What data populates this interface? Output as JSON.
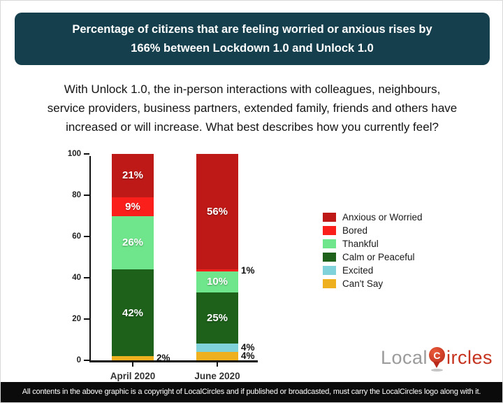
{
  "header": {
    "title_line1": "Percentage of citizens that are feeling worried or anxious rises by",
    "title_line2": "166% between Lockdown 1.0 and Unlock 1.0",
    "bg_color": "#153f4d"
  },
  "question": {
    "lines": [
      "With Unlock 1.0, the in-person interactions with colleagues, neighbours,",
      "service providers, business partners, extended family, friends and others have",
      "increased or will increase. What best describes how you currently feel?"
    ]
  },
  "chart_data": {
    "type": "bar",
    "subtype": "stacked",
    "title": "",
    "xlabel": "",
    "ylabel": "",
    "categories": [
      "April 2020",
      "June 2020"
    ],
    "series": [
      {
        "name": "Anxious or Worried",
        "color": "#be1917",
        "values": [
          21,
          56
        ]
      },
      {
        "name": "Bored",
        "color": "#fb1f1c",
        "values": [
          9,
          1
        ]
      },
      {
        "name": "Thankful",
        "color": "#70e68c",
        "values": [
          26,
          10
        ]
      },
      {
        "name": "Calm or Peaceful",
        "color": "#1e611b",
        "values": [
          42,
          25
        ]
      },
      {
        "name": "Excited",
        "color": "#7fd2d9",
        "values": [
          0,
          4
        ]
      },
      {
        "name": "Can't Say",
        "color": "#eeb01f",
        "values": [
          2,
          4
        ]
      }
    ],
    "ylim": [
      0,
      100
    ],
    "yticks": [
      0,
      20,
      40,
      60,
      80,
      100
    ],
    "grid": false,
    "legend_position": "right",
    "value_suffix": "%",
    "inside_label_min_value": 9
  },
  "logo": {
    "part1": "Local",
    "pin_letter": "C",
    "part2": "ircles"
  },
  "footer": {
    "text": "All contents in the above graphic is a copyright of LocalCircles and if published or broadcasted, must carry the LocalCircles logo along with it.",
    "bg_color": "#0b0b0b"
  }
}
